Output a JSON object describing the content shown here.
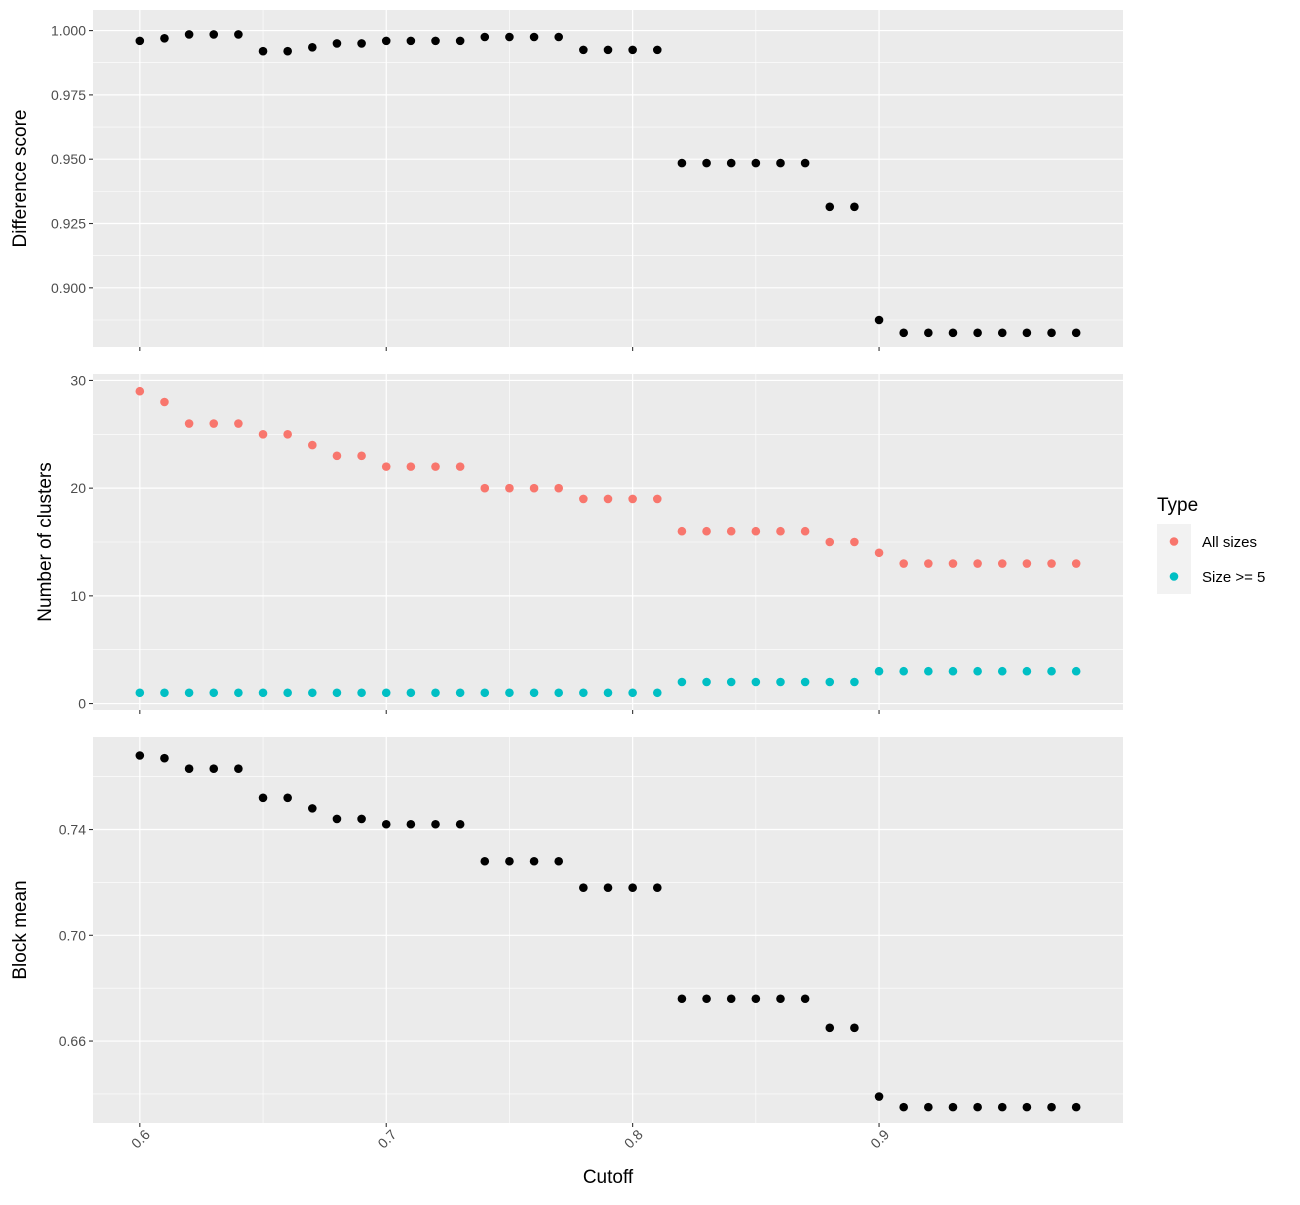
{
  "chart_data": {
    "type": "scatter",
    "xlabel": "Cutoff",
    "x_ticks": [
      "0.6",
      "0.7",
      "0.8",
      "0.9"
    ],
    "xlim": [
      0.581,
      0.999
    ],
    "x": [
      0.6,
      0.61,
      0.62,
      0.63,
      0.64,
      0.65,
      0.66,
      0.67,
      0.68,
      0.69,
      0.7,
      0.71,
      0.72,
      0.73,
      0.74,
      0.75,
      0.76,
      0.77,
      0.78,
      0.79,
      0.8,
      0.81,
      0.82,
      0.83,
      0.84,
      0.85,
      0.86,
      0.87,
      0.88,
      0.89,
      0.9,
      0.91,
      0.92,
      0.93,
      0.94,
      0.95,
      0.96,
      0.97,
      0.98
    ],
    "grid": true,
    "background": "#ebebeb",
    "legend": {
      "title": "Type",
      "placement": "right",
      "items": [
        {
          "label": "All sizes",
          "color": "#f8766d"
        },
        {
          "label": "Size >= 5",
          "color": "#00bfc4"
        }
      ]
    },
    "panels": [
      {
        "ylabel": "Difference score",
        "ylim": [
          0.877,
          1.008
        ],
        "y_ticks": [
          "0.900",
          "0.925",
          "0.950",
          "0.975",
          "1.000"
        ],
        "series": [
          {
            "color": "#000000",
            "values": [
              0.996,
              0.997,
              0.9985,
              0.9985,
              0.9985,
              0.992,
              0.992,
              0.9935,
              0.995,
              0.995,
              0.996,
              0.996,
              0.996,
              0.996,
              0.9975,
              0.9975,
              0.9975,
              0.9975,
              0.9925,
              0.9925,
              0.9925,
              0.9925,
              0.9485,
              0.9485,
              0.9485,
              0.9485,
              0.9485,
              0.9485,
              0.9315,
              0.9315,
              0.8875,
              0.8825,
              0.8825,
              0.8825,
              0.8825,
              0.8825,
              0.8825,
              0.8825,
              0.8825
            ]
          }
        ]
      },
      {
        "ylabel": "Number of clusters",
        "ylim": [
          -0.6,
          30.6
        ],
        "y_ticks": [
          "0",
          "10",
          "20",
          "30"
        ],
        "series": [
          {
            "name": "All sizes",
            "color": "#f8766d",
            "values": [
              29,
              28,
              26,
              26,
              26,
              25,
              25,
              24,
              23,
              23,
              22,
              22,
              22,
              22,
              20,
              20,
              20,
              20,
              19,
              19,
              19,
              19,
              16,
              16,
              16,
              16,
              16,
              16,
              15,
              15,
              14,
              13,
              13,
              13,
              13,
              13,
              13,
              13,
              13
            ]
          },
          {
            "name": "Size >= 5",
            "color": "#00bfc4",
            "values": [
              1,
              1,
              1,
              1,
              1,
              1,
              1,
              1,
              1,
              1,
              1,
              1,
              1,
              1,
              1,
              1,
              1,
              1,
              1,
              1,
              1,
              1,
              2,
              2,
              2,
              2,
              2,
              2,
              2,
              2,
              3,
              3,
              3,
              3,
              3,
              3,
              3,
              3,
              3
            ]
          }
        ]
      },
      {
        "ylabel": "Block mean",
        "ylim": [
          0.629,
          0.775
        ],
        "y_ticks": [
          "0.66",
          "0.70",
          "0.74"
        ],
        "series": [
          {
            "color": "#000000",
            "values": [
              0.768,
              0.767,
              0.763,
              0.763,
              0.763,
              0.752,
              0.752,
              0.748,
              0.744,
              0.744,
              0.742,
              0.742,
              0.742,
              0.742,
              0.728,
              0.728,
              0.728,
              0.728,
              0.718,
              0.718,
              0.718,
              0.718,
              0.676,
              0.676,
              0.676,
              0.676,
              0.676,
              0.676,
              0.665,
              0.665,
              0.639,
              0.635,
              0.635,
              0.635,
              0.635,
              0.635,
              0.635,
              0.635,
              0.635
            ]
          }
        ]
      }
    ]
  }
}
